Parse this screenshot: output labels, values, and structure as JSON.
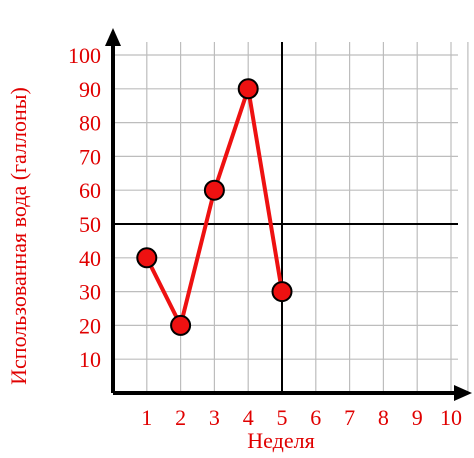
{
  "chart_data": {
    "type": "line",
    "xlabel": "Неделя",
    "ylabel": "Использованная вода (галлоны)",
    "xlim": [
      0,
      10
    ],
    "ylim": [
      0,
      100
    ],
    "x_ticks": [
      "1",
      "2",
      "3",
      "4",
      "5",
      "6",
      "7",
      "8",
      "9",
      "10"
    ],
    "y_ticks": [
      "10",
      "20",
      "30",
      "40",
      "50",
      "60",
      "70",
      "80",
      "90",
      "100"
    ],
    "grid": true,
    "reference_lines": {
      "x": 5,
      "y": 50
    },
    "series": [
      {
        "x": [
          1,
          2,
          3,
          4,
          5
        ],
        "values": [
          40,
          20,
          60,
          90,
          30
        ]
      }
    ],
    "colors": {
      "series": "#ee1111",
      "labels": "#e00000",
      "axes": "#000000",
      "grid": "#bdbdbd"
    }
  }
}
